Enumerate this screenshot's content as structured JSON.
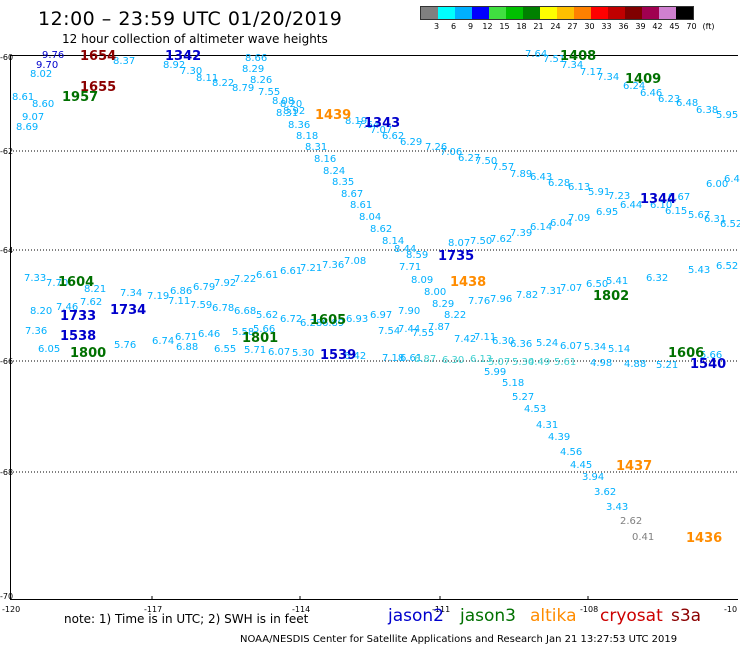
{
  "title": "12:00 – 23:59 UTC 01/20/2019",
  "subtitle": "12 hour collection of altimeter wave heights",
  "colorbar": {
    "colors": [
      "#808080",
      "#00ffff",
      "#00b0ff",
      "#0000ff",
      "#40e040",
      "#00c000",
      "#008000",
      "#ffff00",
      "#ffc000",
      "#ff8000",
      "#ff0000",
      "#c00000",
      "#800000",
      "#a00050",
      "#d080d0",
      "#000000"
    ],
    "labels": [
      "3",
      "6",
      "9",
      "12",
      "15",
      "18",
      "21",
      "24",
      "27",
      "30",
      "33",
      "36",
      "39",
      "42",
      "45",
      "70",
      "(ft)"
    ]
  },
  "map": {
    "lat_ticks": [
      "-60",
      "-62",
      "-64",
      "-66",
      "-68",
      "-70"
    ],
    "lon_ticks": [
      "-120",
      "-117",
      "-114",
      "-111",
      "-108",
      "-10"
    ]
  },
  "sat_colors": {
    "jason2": "#0000cc",
    "jason3": "#007000",
    "altika": "#ff8c00",
    "cryosat": "#cc0000",
    "s3a": "#8b0000"
  },
  "times": [
    {
      "t": "1654",
      "sat": "s3a"
    },
    {
      "t": "1342",
      "sat": "jason2"
    },
    {
      "t": "1655",
      "sat": "s3a"
    },
    {
      "t": "1957",
      "sat": "jason3"
    },
    {
      "t": "1408",
      "sat": "jason3"
    },
    {
      "t": "1409",
      "sat": "jason3"
    },
    {
      "t": "1439",
      "sat": "altika"
    },
    {
      "t": "1343",
      "sat": "jason2"
    },
    {
      "t": "1344",
      "sat": "jason2"
    },
    {
      "t": "1735",
      "sat": "jason2"
    },
    {
      "t": "1438",
      "sat": "altika"
    },
    {
      "t": "1604",
      "sat": "jason3"
    },
    {
      "t": "1733",
      "sat": "jason2"
    },
    {
      "t": "1734",
      "sat": "jason2"
    },
    {
      "t": "1802",
      "sat": "jason3"
    },
    {
      "t": "1801",
      "sat": "jason3"
    },
    {
      "t": "1605",
      "sat": "jason3"
    },
    {
      "t": "1538",
      "sat": "jason2"
    },
    {
      "t": "1800",
      "sat": "jason3"
    },
    {
      "t": "1539",
      "sat": "jason2"
    },
    {
      "t": "1606",
      "sat": "jason3"
    },
    {
      "t": "1540",
      "sat": "jason2"
    },
    {
      "t": "1437",
      "sat": "altika"
    },
    {
      "t": "1436",
      "sat": "altika"
    }
  ],
  "obs": [
    {
      "v": "9.76"
    },
    {
      "v": "9.70"
    },
    {
      "v": "8.02"
    },
    {
      "v": "8.61"
    },
    {
      "v": "8.60"
    },
    {
      "v": "9.07"
    },
    {
      "v": "8.69"
    },
    {
      "v": "8.37"
    },
    {
      "v": "8.92"
    },
    {
      "v": "7.30"
    },
    {
      "v": "8.11"
    },
    {
      "v": "8.22"
    },
    {
      "v": "8.66"
    },
    {
      "v": "8.29"
    },
    {
      "v": "8.26"
    },
    {
      "v": "8.79"
    },
    {
      "v": "7.55"
    },
    {
      "v": "8.08"
    },
    {
      "v": "8.20"
    },
    {
      "v": "8.31"
    },
    {
      "v": "8.92"
    },
    {
      "v": "8.36"
    },
    {
      "v": "8.18"
    },
    {
      "v": "8.31"
    },
    {
      "v": "8.16"
    },
    {
      "v": "8.24"
    },
    {
      "v": "8.35"
    },
    {
      "v": "8.67"
    },
    {
      "v": "8.61"
    },
    {
      "v": "8.04"
    },
    {
      "v": "8.62"
    },
    {
      "v": "8.14"
    },
    {
      "v": "8.44"
    },
    {
      "v": "8.59"
    },
    {
      "v": "7.71"
    },
    {
      "v": "8.09"
    },
    {
      "v": "8.00"
    },
    {
      "v": "8.29"
    },
    {
      "v": "8.22"
    },
    {
      "v": "7.76"
    },
    {
      "v": "8.19"
    },
    {
      "v": "7.64"
    },
    {
      "v": "7.07"
    },
    {
      "v": "6.62"
    },
    {
      "v": "6.29"
    },
    {
      "v": "7.26"
    },
    {
      "v": "7.06"
    },
    {
      "v": "6.27"
    },
    {
      "v": "7.50"
    },
    {
      "v": "7.57"
    },
    {
      "v": "7.89"
    },
    {
      "v": "6.43"
    },
    {
      "v": "6.28"
    },
    {
      "v": "6.13"
    },
    {
      "v": "5.91"
    },
    {
      "v": "7.23"
    },
    {
      "v": "6.44"
    },
    {
      "v": "6.67"
    },
    {
      "v": "6.00"
    },
    {
      "v": "6.4"
    },
    {
      "v": "7.64"
    },
    {
      "v": "7.51"
    },
    {
      "v": "7.34"
    },
    {
      "v": "7.17"
    },
    {
      "v": "7.34"
    },
    {
      "v": "6.24"
    },
    {
      "v": "6.46"
    },
    {
      "v": "6.23"
    },
    {
      "v": "6.48"
    },
    {
      "v": "6.38"
    },
    {
      "v": "5.95"
    },
    {
      "v": "6.10"
    },
    {
      "v": "6.15"
    },
    {
      "v": "5.67"
    },
    {
      "v": "6.31"
    },
    {
      "v": "6.52"
    },
    {
      "v": "6.95"
    },
    {
      "v": "7.09"
    },
    {
      "v": "6.04"
    },
    {
      "v": "6.14"
    },
    {
      "v": "7.39"
    },
    {
      "v": "7.62"
    },
    {
      "v": "7.50"
    },
    {
      "v": "8.07"
    },
    {
      "v": "7.33"
    },
    {
      "v": "7.70"
    },
    {
      "v": "8.21"
    },
    {
      "v": "7.34"
    },
    {
      "v": "7.19"
    },
    {
      "v": "6.86"
    },
    {
      "v": "6.79"
    },
    {
      "v": "7.92"
    },
    {
      "v": "7.22"
    },
    {
      "v": "6.61"
    },
    {
      "v": "6.61"
    },
    {
      "v": "7.21"
    },
    {
      "v": "7.36"
    },
    {
      "v": "7.08"
    },
    {
      "v": "8.20"
    },
    {
      "v": "7.46"
    },
    {
      "v": "7.62"
    },
    {
      "v": "7.11"
    },
    {
      "v": "7.59"
    },
    {
      "v": "6.78"
    },
    {
      "v": "6.68"
    },
    {
      "v": "5.62"
    },
    {
      "v": "6.72"
    },
    {
      "v": "6.28"
    },
    {
      "v": "6.89"
    },
    {
      "v": "6.93"
    },
    {
      "v": "6.97"
    },
    {
      "v": "7.90"
    },
    {
      "v": "7.96"
    },
    {
      "v": "7.82"
    },
    {
      "v": "7.31"
    },
    {
      "v": "7.07"
    },
    {
      "v": "6.50"
    },
    {
      "v": "5.41"
    },
    {
      "v": "6.32"
    },
    {
      "v": "5.43"
    },
    {
      "v": "6.52"
    },
    {
      "v": "7.36"
    },
    {
      "v": "6.05"
    },
    {
      "v": "6.74"
    },
    {
      "v": "6.71"
    },
    {
      "v": "6.46"
    },
    {
      "v": "5.58"
    },
    {
      "v": "5.66"
    },
    {
      "v": "7.54"
    },
    {
      "v": "7.44"
    },
    {
      "v": "7.55"
    },
    {
      "v": "7.87"
    },
    {
      "v": "7.42"
    },
    {
      "v": "7.11"
    },
    {
      "v": "6.30"
    },
    {
      "v": "6.36"
    },
    {
      "v": "5.24"
    },
    {
      "v": "6.07"
    },
    {
      "v": "5.34"
    },
    {
      "v": "5.14"
    },
    {
      "v": "5.76"
    },
    {
      "v": "6.88"
    },
    {
      "v": "6.55"
    },
    {
      "v": "5.71"
    },
    {
      "v": "6.07"
    },
    {
      "v": "5.30"
    },
    {
      "v": "6.42"
    },
    {
      "v": "7.18"
    },
    {
      "v": "6.61"
    },
    {
      "v": "6.87"
    },
    {
      "v": "6.30"
    },
    {
      "v": "6.13"
    },
    {
      "v": "5.07"
    },
    {
      "v": "5.30"
    },
    {
      "v": "4.49"
    },
    {
      "v": "5.61"
    },
    {
      "v": "4.98"
    },
    {
      "v": "4.88"
    },
    {
      "v": "5.21"
    },
    {
      "v": "5.66"
    },
    {
      "v": "5.99"
    },
    {
      "v": "5.18"
    },
    {
      "v": "5.27"
    },
    {
      "v": "4.53"
    },
    {
      "v": "4.31"
    },
    {
      "v": "4.39"
    },
    {
      "v": "4.56"
    },
    {
      "v": "4.45"
    },
    {
      "v": "3.94"
    },
    {
      "v": "3.62"
    },
    {
      "v": "3.43"
    },
    {
      "v": "2.62"
    },
    {
      "v": "0.41"
    }
  ],
  "footnote": "note: 1) Time is in UTC; 2) SWH is in feet",
  "legend": [
    "jason2",
    "jason3",
    "altika",
    "cryosat",
    "s3a"
  ],
  "credit": "NOAA/NESDIS Center for Satellite Applications and Research    Jan 21 13:27:53 UTC 2019"
}
